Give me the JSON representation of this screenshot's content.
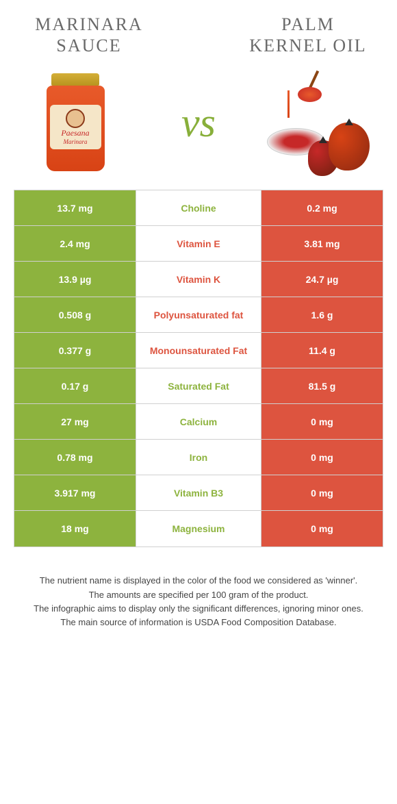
{
  "titles": {
    "left": "MARINARA SAUCE",
    "right": "PALM KERNEL OIL"
  },
  "vs_text": "vs",
  "jar_brand": "Paesana",
  "jar_variant": "Marinara",
  "colors": {
    "left_bg": "#8db33e",
    "right_bg": "#dd543f",
    "left_text": "#8db33e",
    "right_text": "#dd543f",
    "border": "#d0d0d0"
  },
  "rows": [
    {
      "left": "13.7 mg",
      "label": "Choline",
      "right": "0.2 mg",
      "winner": "left"
    },
    {
      "left": "2.4 mg",
      "label": "Vitamin E",
      "right": "3.81 mg",
      "winner": "right"
    },
    {
      "left": "13.9 µg",
      "label": "Vitamin K",
      "right": "24.7 µg",
      "winner": "right"
    },
    {
      "left": "0.508 g",
      "label": "Polyunsaturated fat",
      "right": "1.6 g",
      "winner": "right"
    },
    {
      "left": "0.377 g",
      "label": "Monounsaturated Fat",
      "right": "11.4 g",
      "winner": "right"
    },
    {
      "left": "0.17 g",
      "label": "Saturated Fat",
      "right": "81.5 g",
      "winner": "left"
    },
    {
      "left": "27 mg",
      "label": "Calcium",
      "right": "0 mg",
      "winner": "left"
    },
    {
      "left": "0.78 mg",
      "label": "Iron",
      "right": "0 mg",
      "winner": "left"
    },
    {
      "left": "3.917 mg",
      "label": "Vitamin B3",
      "right": "0 mg",
      "winner": "left"
    },
    {
      "left": "18 mg",
      "label": "Magnesium",
      "right": "0 mg",
      "winner": "left"
    }
  ],
  "footer": {
    "line1": "The nutrient name is displayed in the color of the food we considered as 'winner'.",
    "line2": "The amounts are specified per 100 gram of the product.",
    "line3": "The infographic aims to display only the significant differences, ignoring minor ones.",
    "line4": "The main source of information is USDA Food Composition Database."
  }
}
